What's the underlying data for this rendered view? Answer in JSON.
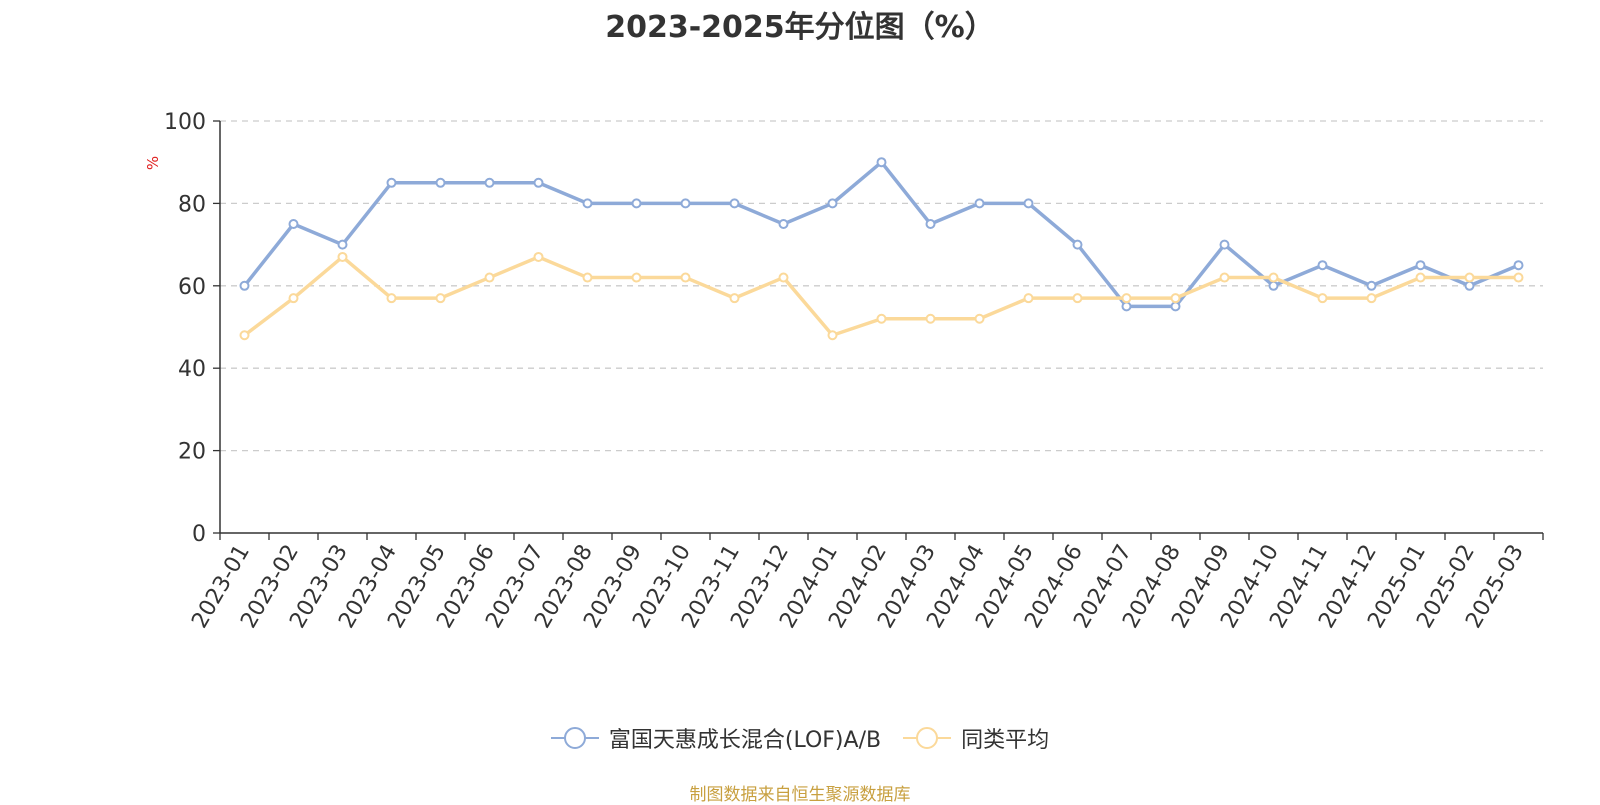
{
  "chart_data": {
    "type": "line",
    "title": "2023-2025年分位图（%）",
    "ylabel": "%",
    "xlabel": "",
    "ylim": [
      0,
      100
    ],
    "yticks": [
      0,
      20,
      40,
      60,
      80,
      100
    ],
    "grid": true,
    "legend_position": "bottom",
    "categories": [
      "2023-01",
      "2023-02",
      "2023-03",
      "2023-04",
      "2023-05",
      "2023-06",
      "2023-07",
      "2023-08",
      "2023-09",
      "2023-10",
      "2023-11",
      "2023-12",
      "2024-01",
      "2024-02",
      "2024-03",
      "2024-04",
      "2024-05",
      "2024-06",
      "2024-07",
      "2024-08",
      "2024-09",
      "2024-10",
      "2024-11",
      "2024-12",
      "2025-01",
      "2025-02",
      "2025-03"
    ],
    "series": [
      {
        "name": "富国天惠成长混合(LOF)A/B",
        "color": "#8eaad8",
        "values": [
          60,
          75,
          70,
          85,
          85,
          85,
          85,
          80,
          80,
          80,
          80,
          75,
          80,
          90,
          75,
          80,
          80,
          70,
          55,
          55,
          70,
          60,
          65,
          60,
          65,
          60,
          65
        ]
      },
      {
        "name": "同类平均",
        "color": "#fbd99a",
        "values": [
          48,
          57,
          67,
          57,
          57,
          62,
          67,
          62,
          62,
          62,
          57,
          62,
          48,
          52,
          52,
          52,
          57,
          57,
          57,
          57,
          62,
          62,
          57,
          57,
          62,
          62,
          62
        ]
      }
    ]
  },
  "source_note": "制图数据来自恒生聚源数据库"
}
